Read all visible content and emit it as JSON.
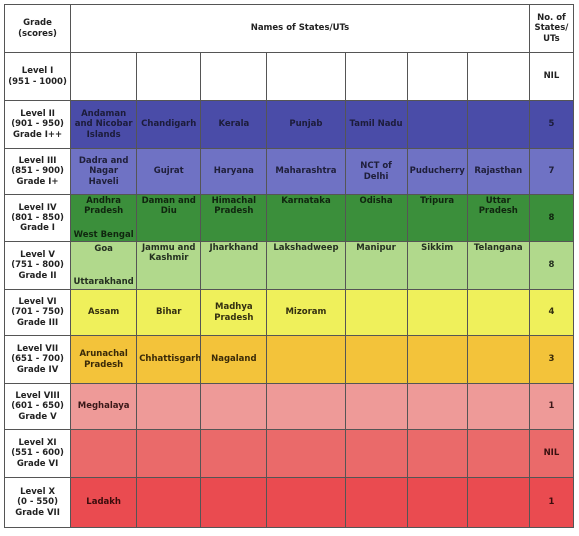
{
  "header": {
    "grade": "Grade\n(scores)",
    "names": "Names of States/UTs",
    "count": "No. of\nStates/\nUTs"
  },
  "rows": [
    {
      "grade": "Level I\n(951 - 1000)",
      "count": "NIL",
      "states": [
        "",
        "",
        "",
        "",
        "",
        "",
        ""
      ]
    },
    {
      "grade": "Level II\n(901 - 950)\nGrade I++",
      "count": "5",
      "states": [
        "Andaman\nand Nicobar\nIslands",
        "Chandigarh",
        "Kerala",
        "Punjab",
        "Tamil Nadu",
        "",
        ""
      ]
    },
    {
      "grade": "Level III\n(851 - 900)\nGrade I+",
      "count": "7",
      "states": [
        "Dadra and\nNagar Haveli",
        "Gujrat",
        "Haryana",
        "Maharashtra",
        "NCT of Delhi",
        "Puducherry",
        "Rajasthan"
      ]
    },
    {
      "grade": "Level IV\n(801 - 850)\nGrade I",
      "count": "8",
      "states": [
        "Andhra\nPradesh",
        "Daman and\nDiu",
        "Himachal\nPradesh",
        "Karnataka",
        "Odisha",
        "Tripura",
        "Uttar\nPradesh"
      ],
      "extra": "West Bengal"
    },
    {
      "grade": "Level V\n(751 - 800)\nGrade II",
      "count": "8",
      "states": [
        "Goa",
        "Jammu and\nKashmir",
        "Jharkhand",
        "Lakshadweep",
        "Manipur",
        "Sikkim",
        "Telangana"
      ],
      "extra": "Uttarakhand"
    },
    {
      "grade": "Level VI\n(701 - 750)\nGrade III",
      "count": "4",
      "states": [
        "Assam",
        "Bihar",
        "Madhya\nPradesh",
        "Mizoram",
        "",
        "",
        ""
      ]
    },
    {
      "grade": "Level VII\n(651 - 700)\nGrade IV",
      "count": "3",
      "states": [
        "Arunachal\nPradesh",
        "Chhattisgarh",
        "Nagaland",
        "",
        "",
        "",
        ""
      ]
    },
    {
      "grade": "Level VIII\n(601 - 650)\nGrade V",
      "count": "1",
      "states": [
        "Meghalaya",
        "",
        "",
        "",
        "",
        "",
        ""
      ]
    },
    {
      "grade": "Level XI\n(551 - 600)\nGrade VI",
      "count": "NIL",
      "states": [
        "",
        "",
        "",
        "",
        "",
        "",
        ""
      ]
    },
    {
      "grade": "Level X\n(0 - 550)\nGrade VII",
      "count": "1",
      "states": [
        "Ladakh",
        "",
        "",
        "",
        "",
        "",
        ""
      ]
    }
  ]
}
